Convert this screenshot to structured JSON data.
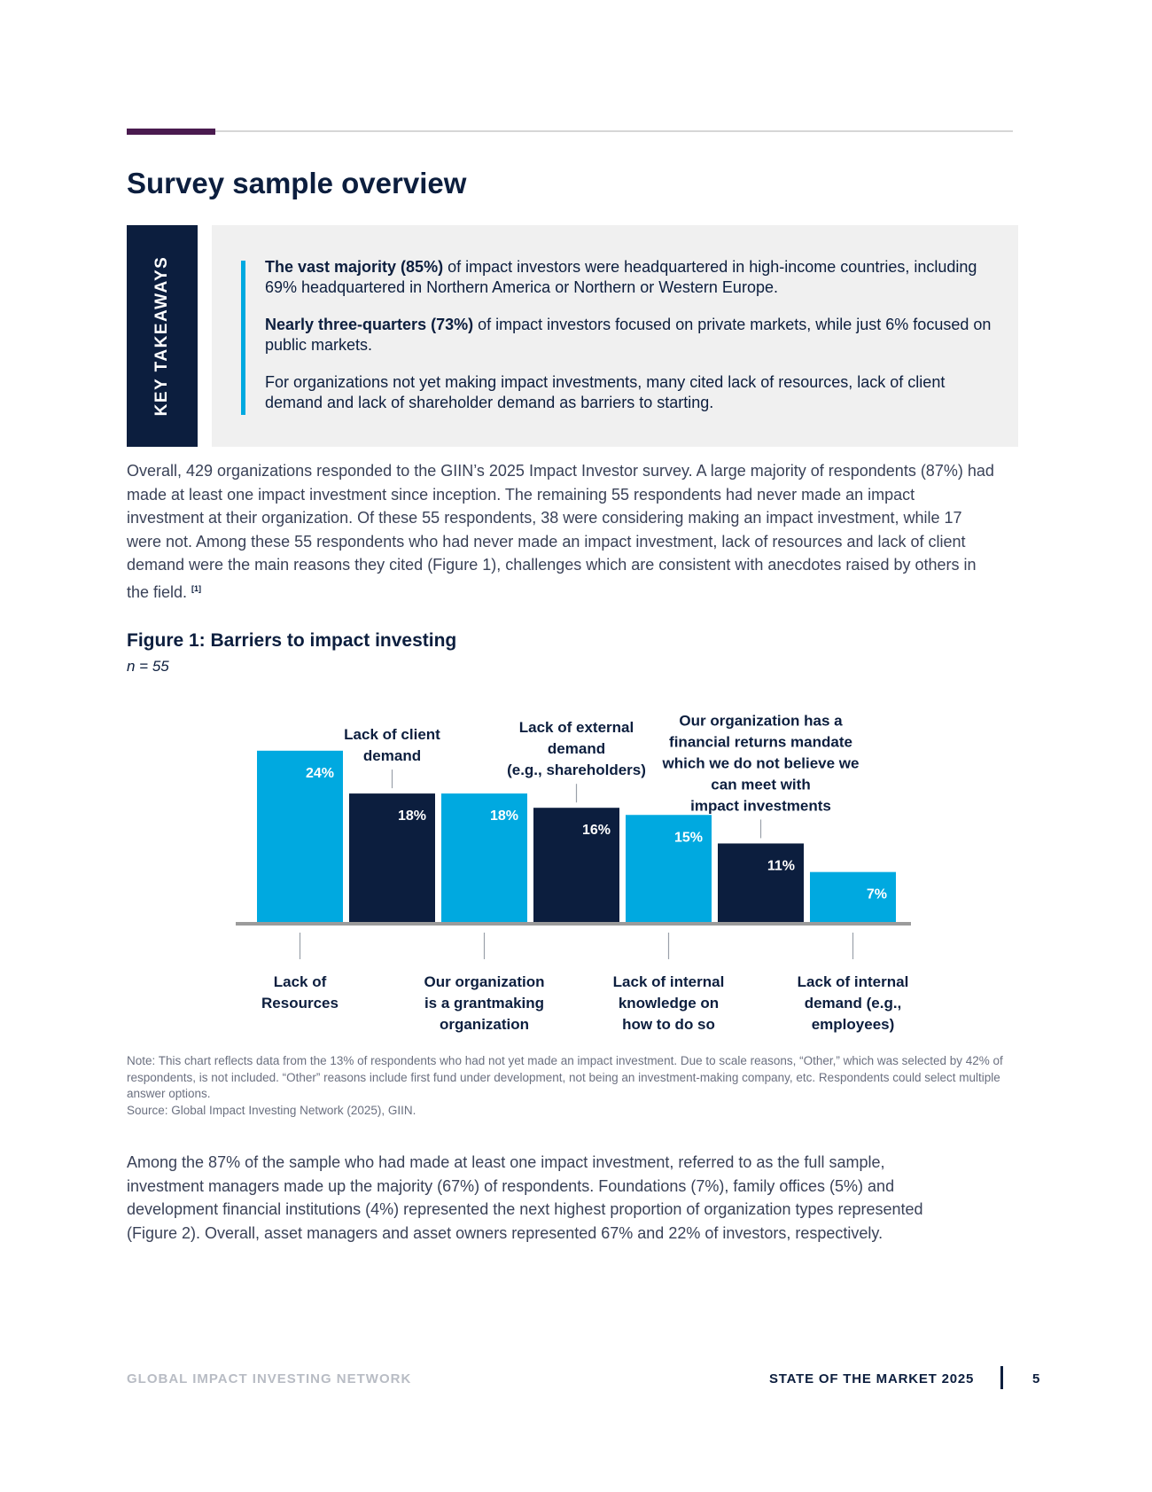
{
  "section": {
    "title": "Survey sample overview"
  },
  "key_takeaways": {
    "label": "KEY TAKEAWAYS",
    "items": [
      {
        "lead": "The vast majority (85%)",
        "text": " of impact investors were headquartered in high-income countries, including 69% headquartered in Northern America or Northern or Western Europe."
      },
      {
        "lead": "Nearly three-quarters (73%)",
        "text": " of impact investors focused on private markets, while just 6% focused on public markets."
      },
      {
        "lead": "",
        "text": "For organizations not yet making impact investments, many cited lack of resources, lack of client demand and lack of shareholder demand as barriers to starting."
      }
    ]
  },
  "intro": {
    "text": "Overall, 429 organizations responded to the GIIN’s 2025 Impact Investor survey. A large majority of respondents (87%) had made at least one impact investment since inception. The remaining 55 respondents had never made an impact investment at their organization. Of these 55 respondents, 38 were considering making an impact investment, while 17 were not. Among these 55 respondents who had never made an impact investment, lack of resources and lack of client demand were the main reasons they cited (Figure 1), challenges which are consistent with anecdotes raised by others in the field. ",
    "footnote": "[1]"
  },
  "figure": {
    "title": "Figure 1: Barriers to impact investing",
    "n": "n = 55"
  },
  "chart_data": {
    "type": "bar",
    "title": "Figure 1: Barriers to impact investing",
    "categories": [
      "Lack of Resources",
      "Lack of client demand",
      "Our organization is a grantmaking organization",
      "Lack of external demand (e.g., shareholders)",
      "Lack of internal knowledge on how to do so",
      "Our organization has a financial returns mandate which we do not believe we can meet with impact investments",
      "Lack of internal demand (e.g., employees)"
    ],
    "category_label_lines": [
      [
        "Lack of",
        "Resources"
      ],
      [
        "Lack of client",
        "demand"
      ],
      [
        "Our organization",
        "is a grantmaking",
        "organization"
      ],
      [
        "Lack of external",
        "demand",
        "(e.g., shareholders)"
      ],
      [
        "Lack of internal",
        "knowledge on",
        "how to do so"
      ],
      [
        "Our organization has a",
        "financial returns mandate",
        "which we do not believe we",
        "can meet with",
        "impact investments"
      ],
      [
        "Lack of internal",
        "demand (e.g.,",
        "employees)"
      ]
    ],
    "values": [
      24,
      18,
      18,
      16,
      15,
      11,
      7
    ],
    "value_labels": [
      "24%",
      "18%",
      "18%",
      "16%",
      "15%",
      "11%",
      "7%"
    ],
    "unit": "%",
    "ylim": [
      0,
      24
    ],
    "grid": false,
    "legend": "none",
    "colors": [
      "#00a9e0",
      "#0c1e3e"
    ]
  },
  "note": {
    "text": "Note: This chart reflects data from the 13% of respondents who had not yet made an impact investment. Due to scale reasons, “Other,” which was selected by 42% of respondents, is not included. “Other” reasons include first fund under development, not being an investment-making company, etc. Respondents could select multiple answer options.",
    "source": "Source: Global Impact Investing Network (2025), GIIN."
  },
  "paragraph2": {
    "text": "Among the 87% of the sample who had made at least one impact investment, referred to as the full sample, investment managers made up the majority (67%) of respondents. Foundations (7%), family offices (5%) and development financial institutions (4%) represented the next highest proportion of organization types represented (Figure 2). Overall, asset managers and asset owners represented 67% and 22% of investors, respectively."
  },
  "footer": {
    "org": "GLOBAL IMPACT INVESTING NETWORK",
    "report": "STATE OF THE MARKET 2025",
    "page": "5"
  }
}
